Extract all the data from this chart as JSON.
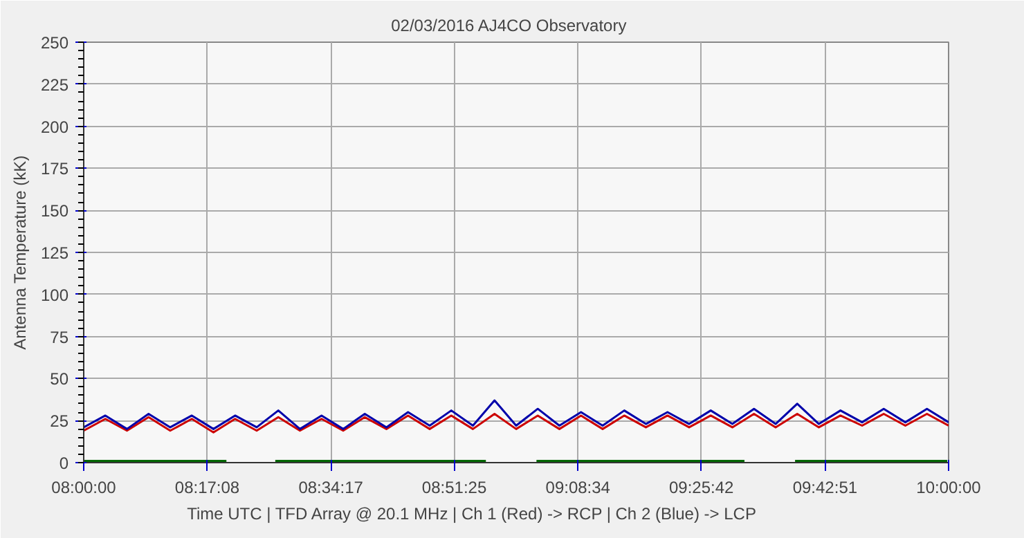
{
  "chart_data": {
    "type": "line",
    "title": "02/03/2016    AJ4CO Observatory",
    "xlabel": "Time UTC    |    TFD Array @ 20.1 MHz    |    Ch 1 (Red) -> RCP    |    Ch 2 (Blue)  -> LCP",
    "ylabel": "Antenna Temperature (kK)",
    "x": [
      8.0,
      8.05,
      8.1,
      8.15,
      8.2,
      8.25,
      8.3,
      8.35,
      8.4,
      8.45,
      8.5,
      8.55,
      8.6,
      8.65,
      8.7,
      8.75,
      8.8,
      8.85,
      8.9,
      8.95,
      9.0,
      9.05,
      9.1,
      9.15,
      9.2,
      9.25,
      9.3,
      9.35,
      9.4,
      9.45,
      9.5,
      9.55,
      9.6,
      9.65,
      9.7,
      9.75,
      9.8,
      9.85,
      9.9,
      9.95,
      10.0
    ],
    "series": [
      {
        "color": "#cc0000",
        "values": [
          19,
          26,
          19,
          27,
          19,
          26,
          18,
          26,
          19,
          27,
          19,
          26,
          19,
          27,
          20,
          28,
          20,
          28,
          20,
          29,
          20,
          28,
          20,
          28,
          20,
          28,
          21,
          28,
          21,
          28,
          21,
          29,
          21,
          29,
          21,
          28,
          22,
          29,
          22,
          29,
          22
        ]
      },
      {
        "color": "#0000aa",
        "values": [
          21,
          28,
          20,
          29,
          21,
          28,
          20,
          28,
          21,
          31,
          20,
          28,
          20,
          29,
          21,
          30,
          22,
          31,
          22,
          37,
          22,
          32,
          22,
          30,
          22,
          31,
          23,
          30,
          23,
          31,
          23,
          32,
          23,
          35,
          23,
          31,
          24,
          32,
          24,
          32,
          24
        ]
      },
      {
        "color": "#006600",
        "x": [
          8.0,
          8.33,
          8.38,
          8.443,
          8.93,
          8.99,
          9.047,
          9.528,
          9.59,
          9.645,
          9.997
        ],
        "values": [
          1,
          1,
          null,
          1,
          1,
          null,
          1,
          1,
          null,
          1,
          1
        ]
      }
    ],
    "xlim": [
      8,
      10
    ],
    "xticks": [
      {
        "value": 8,
        "label": "08:00:00"
      },
      {
        "value": 8.2856,
        "label": "08:17:08"
      },
      {
        "value": 8.5714,
        "label": "08:34:17"
      },
      {
        "value": 8.8569,
        "label": "08:51:25"
      },
      {
        "value": 9.1428,
        "label": "09:08:34"
      },
      {
        "value": 9.4283,
        "label": "09:25:42"
      },
      {
        "value": 9.7142,
        "label": "09:42:51"
      },
      {
        "value": 10,
        "label": "10:00:00"
      }
    ],
    "ylim": [
      0,
      250
    ],
    "yticks": [
      0,
      25,
      50,
      75,
      100,
      125,
      150,
      175,
      200,
      225,
      250
    ],
    "grid": true,
    "marker": "none",
    "line_style": "solid"
  }
}
